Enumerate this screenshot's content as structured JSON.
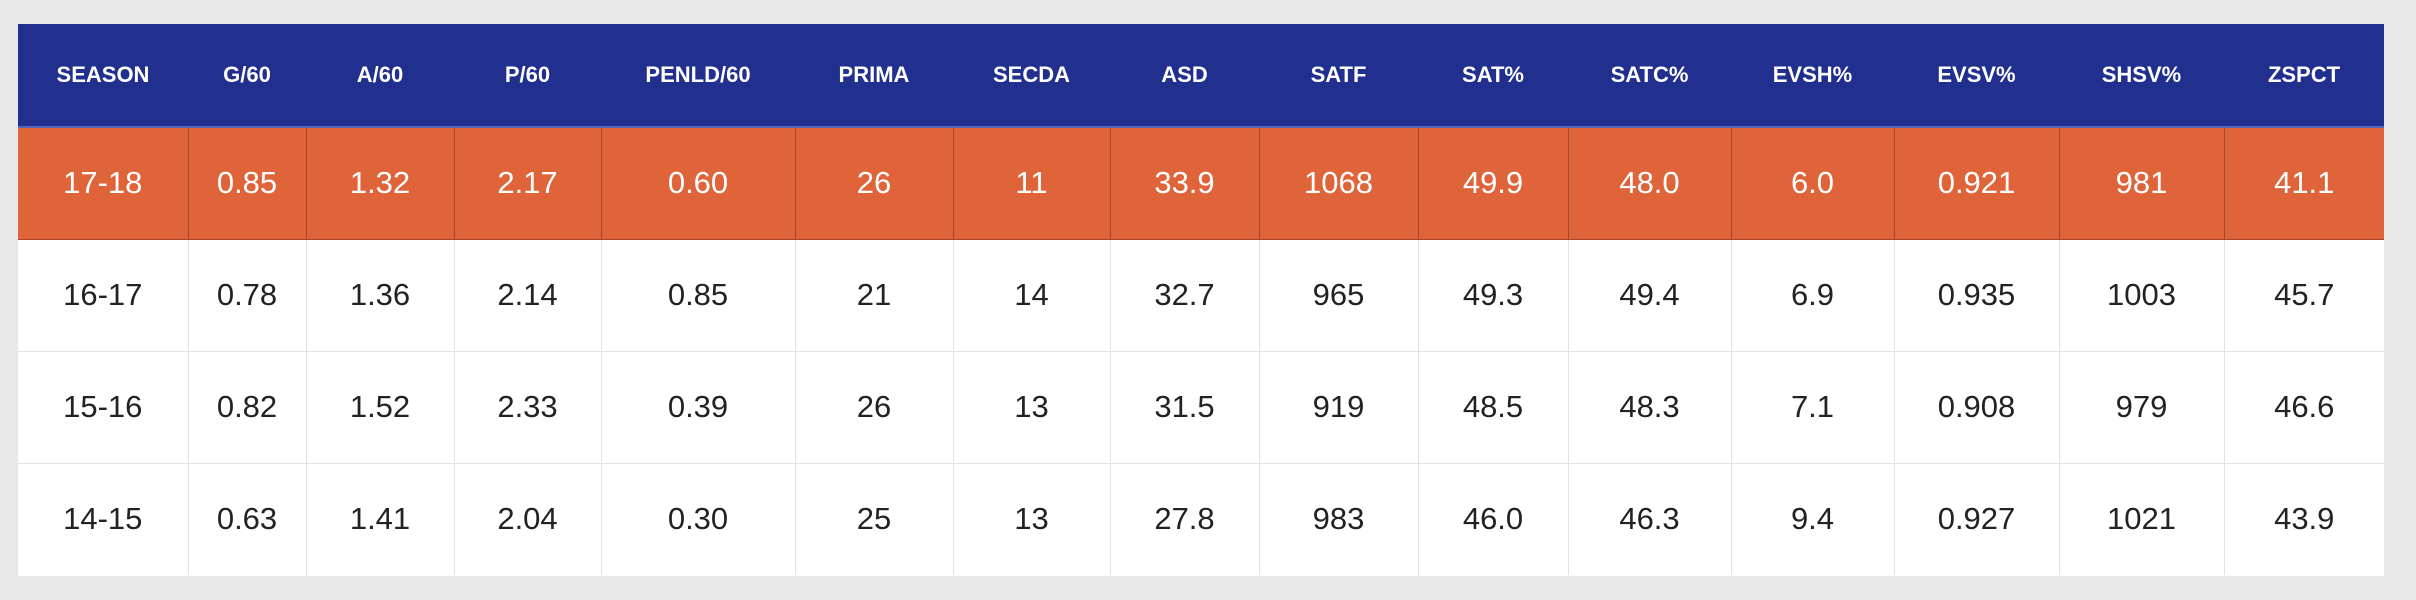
{
  "table": {
    "columns": [
      "SEASON",
      "G/60",
      "A/60",
      "P/60",
      "PENLD/60",
      "PRIMA",
      "SECDA",
      "ASD",
      "SATF",
      "SAT%",
      "SATC%",
      "EVSH%",
      "EVSV%",
      "SHSV%",
      "ZSPCT"
    ],
    "rows": [
      {
        "highlighted": true,
        "cells": [
          "17-18",
          "0.85",
          "1.32",
          "2.17",
          "0.60",
          "26",
          "11",
          "33.9",
          "1068",
          "49.9",
          "48.0",
          "6.0",
          "0.921",
          "981",
          "41.1"
        ]
      },
      {
        "highlighted": false,
        "cells": [
          "16-17",
          "0.78",
          "1.36",
          "2.14",
          "0.85",
          "21",
          "14",
          "32.7",
          "965",
          "49.3",
          "49.4",
          "6.9",
          "0.935",
          "1003",
          "45.7"
        ]
      },
      {
        "highlighted": false,
        "cells": [
          "15-16",
          "0.82",
          "1.52",
          "2.33",
          "0.39",
          "26",
          "13",
          "31.5",
          "919",
          "48.5",
          "48.3",
          "7.1",
          "0.908",
          "979",
          "46.6"
        ]
      },
      {
        "highlighted": false,
        "cells": [
          "14-15",
          "0.63",
          "1.41",
          "2.04",
          "0.30",
          "25",
          "13",
          "27.8",
          "983",
          "46.0",
          "46.3",
          "9.4",
          "0.927",
          "1021",
          "43.9"
        ]
      }
    ]
  },
  "colors": {
    "header_bg": "#21308f",
    "highlight_bg": "#e0643a",
    "page_bg": "#e8e8e8"
  }
}
